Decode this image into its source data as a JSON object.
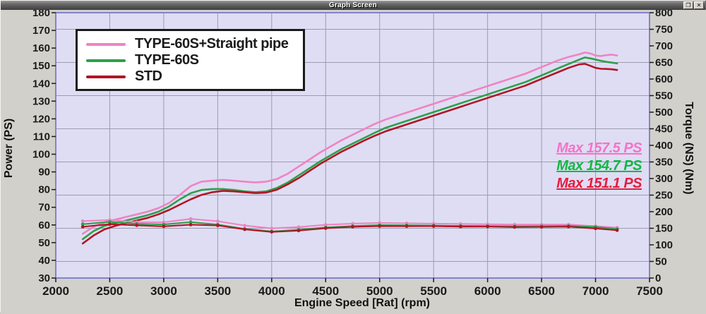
{
  "window": {
    "title": "Graph Screen",
    "restore_icon": "❐",
    "close_icon": "✕"
  },
  "legend": {
    "items": [
      {
        "label": "TYPE-60S+Straight pipe",
        "color": "#ee84c4"
      },
      {
        "label": "TYPE-60S",
        "color": "#2da04a"
      },
      {
        "label": "STD",
        "color": "#b01626"
      }
    ]
  },
  "chart_data": {
    "type": "line",
    "title": "Graph Screen",
    "x_axis": {
      "label": "Engine Speed [Rat] (rpm)",
      "min": 2000,
      "max": 7500,
      "tick_step": 500,
      "ticks": [
        2000,
        2500,
        3000,
        3500,
        4000,
        4500,
        5000,
        5500,
        6000,
        6500,
        7000,
        7500
      ]
    },
    "y_left": {
      "label": "Power (PS)",
      "min": 30,
      "max": 180,
      "tick_step": 10,
      "ticks": [
        180,
        170,
        160,
        150,
        140,
        130,
        120,
        110,
        100,
        90,
        80,
        70,
        60,
        50,
        40,
        30
      ]
    },
    "y_right": {
      "label": "Torque (NS) (Nm)",
      "min": 0,
      "max": 800,
      "tick_step": 50,
      "ticks": [
        800,
        750,
        700,
        650,
        600,
        550,
        500,
        450,
        400,
        350,
        300,
        250,
        200,
        150,
        100,
        50,
        0
      ]
    },
    "grid": {
      "vertical_rpm": [
        2500,
        3000,
        3500,
        4000,
        4500,
        5000,
        5500,
        6000,
        6500,
        7000
      ],
      "horizontal_nm": [
        750,
        650,
        550,
        450,
        350,
        250,
        150,
        50
      ],
      "grid_color": "#9c9cae",
      "plot_background": "#dfddf3",
      "plot_border": "#8383cd"
    },
    "annotations": [
      {
        "text": "Max 157.5 PS",
        "color": "#f473c9"
      },
      {
        "text": "Max 154.7 PS",
        "color": "#10b945"
      },
      {
        "text": "Max 151.1 PS",
        "color": "#e51d3e"
      }
    ],
    "series": [
      {
        "id": "power-type60s-straight-pipe",
        "name": "TYPE-60S+Straight pipe",
        "unit": "PS",
        "axis": "left",
        "color": "#ee84c4",
        "markers": false,
        "max_value": 157.5,
        "points": [
          [
            2250,
            55
          ],
          [
            2350,
            59
          ],
          [
            2450,
            61.5
          ],
          [
            2550,
            63
          ],
          [
            2650,
            64.5
          ],
          [
            2750,
            66
          ],
          [
            2850,
            67.5
          ],
          [
            2950,
            69.5
          ],
          [
            3050,
            72.5
          ],
          [
            3150,
            77
          ],
          [
            3250,
            82
          ],
          [
            3350,
            84.5
          ],
          [
            3450,
            85
          ],
          [
            3550,
            85.5
          ],
          [
            3650,
            85
          ],
          [
            3750,
            84.5
          ],
          [
            3850,
            84
          ],
          [
            3950,
            84.5
          ],
          [
            4050,
            86
          ],
          [
            4150,
            89
          ],
          [
            4250,
            93
          ],
          [
            4350,
            97
          ],
          [
            4450,
            101
          ],
          [
            4550,
            104.5
          ],
          [
            4650,
            108
          ],
          [
            4750,
            111
          ],
          [
            4850,
            114
          ],
          [
            4950,
            117
          ],
          [
            5050,
            119.5
          ],
          [
            5150,
            121.5
          ],
          [
            5250,
            123.5
          ],
          [
            5350,
            125.5
          ],
          [
            5450,
            127.5
          ],
          [
            5550,
            129.5
          ],
          [
            5650,
            131.5
          ],
          [
            5750,
            133.5
          ],
          [
            5850,
            135.5
          ],
          [
            5950,
            137.5
          ],
          [
            6050,
            139.5
          ],
          [
            6150,
            141.5
          ],
          [
            6250,
            143.5
          ],
          [
            6350,
            145.5
          ],
          [
            6450,
            148
          ],
          [
            6550,
            150.5
          ],
          [
            6650,
            153
          ],
          [
            6750,
            155
          ],
          [
            6850,
            156.5
          ],
          [
            6900,
            157.5
          ],
          [
            6950,
            157
          ],
          [
            7000,
            155.8
          ],
          [
            7050,
            155.5
          ],
          [
            7100,
            156
          ],
          [
            7150,
            156.3
          ],
          [
            7200,
            155.8
          ]
        ]
      },
      {
        "id": "power-type60s",
        "name": "TYPE-60S",
        "unit": "PS",
        "axis": "left",
        "color": "#2da04a",
        "markers": false,
        "max_value": 154.7,
        "points": [
          [
            2250,
            52
          ],
          [
            2350,
            56.5
          ],
          [
            2450,
            59.5
          ],
          [
            2550,
            61
          ],
          [
            2650,
            62.5
          ],
          [
            2750,
            64
          ],
          [
            2850,
            65.5
          ],
          [
            2950,
            67.5
          ],
          [
            3050,
            70.5
          ],
          [
            3150,
            74.5
          ],
          [
            3250,
            78
          ],
          [
            3350,
            79.8
          ],
          [
            3450,
            80.3
          ],
          [
            3550,
            80.3
          ],
          [
            3650,
            79.8
          ],
          [
            3750,
            79
          ],
          [
            3850,
            78.5
          ],
          [
            3950,
            79
          ],
          [
            4050,
            81
          ],
          [
            4150,
            84
          ],
          [
            4250,
            88
          ],
          [
            4350,
            92
          ],
          [
            4450,
            96
          ],
          [
            4550,
            99.5
          ],
          [
            4650,
            103
          ],
          [
            4750,
            106
          ],
          [
            4850,
            109
          ],
          [
            4950,
            112
          ],
          [
            5050,
            114.8
          ],
          [
            5150,
            116.8
          ],
          [
            5250,
            118.8
          ],
          [
            5350,
            120.8
          ],
          [
            5450,
            122.8
          ],
          [
            5550,
            124.8
          ],
          [
            5650,
            126.8
          ],
          [
            5750,
            128.8
          ],
          [
            5850,
            130.8
          ],
          [
            5950,
            132.8
          ],
          [
            6050,
            134.8
          ],
          [
            6150,
            136.8
          ],
          [
            6250,
            138.8
          ],
          [
            6350,
            140.8
          ],
          [
            6450,
            143.3
          ],
          [
            6550,
            145.8
          ],
          [
            6650,
            148.5
          ],
          [
            6750,
            151
          ],
          [
            6850,
            153.5
          ],
          [
            6900,
            154.7
          ],
          [
            6950,
            154.2
          ],
          [
            7000,
            153.5
          ],
          [
            7050,
            152.8
          ],
          [
            7100,
            152.2
          ],
          [
            7150,
            151.8
          ],
          [
            7200,
            151.3
          ]
        ]
      },
      {
        "id": "power-std",
        "name": "STD",
        "unit": "PS",
        "axis": "left",
        "color": "#b01626",
        "markers": false,
        "max_value": 151.1,
        "points": [
          [
            2250,
            49.5
          ],
          [
            2350,
            54
          ],
          [
            2450,
            57.5
          ],
          [
            2550,
            59.5
          ],
          [
            2650,
            61
          ],
          [
            2750,
            62.5
          ],
          [
            2850,
            64
          ],
          [
            2950,
            66
          ],
          [
            3050,
            68.5
          ],
          [
            3150,
            71.5
          ],
          [
            3250,
            74.5
          ],
          [
            3350,
            77
          ],
          [
            3450,
            78.5
          ],
          [
            3550,
            79.3
          ],
          [
            3650,
            79
          ],
          [
            3750,
            78.5
          ],
          [
            3850,
            78
          ],
          [
            3950,
            78.3
          ],
          [
            4050,
            80
          ],
          [
            4150,
            83
          ],
          [
            4250,
            86.5
          ],
          [
            4350,
            90.5
          ],
          [
            4450,
            94.5
          ],
          [
            4550,
            98
          ],
          [
            4650,
            101.5
          ],
          [
            4750,
            104.5
          ],
          [
            4850,
            107.5
          ],
          [
            4950,
            110.3
          ],
          [
            5050,
            112.8
          ],
          [
            5150,
            114.8
          ],
          [
            5250,
            116.8
          ],
          [
            5350,
            118.8
          ],
          [
            5450,
            120.8
          ],
          [
            5550,
            122.8
          ],
          [
            5650,
            124.8
          ],
          [
            5750,
            126.8
          ],
          [
            5850,
            128.8
          ],
          [
            5950,
            130.8
          ],
          [
            6050,
            132.8
          ],
          [
            6150,
            134.8
          ],
          [
            6250,
            136.8
          ],
          [
            6350,
            138.8
          ],
          [
            6450,
            141.3
          ],
          [
            6550,
            143.8
          ],
          [
            6650,
            146.3
          ],
          [
            6750,
            148.8
          ],
          [
            6850,
            150.8
          ],
          [
            6900,
            151.1
          ],
          [
            6950,
            150
          ],
          [
            7000,
            148.8
          ],
          [
            7050,
            148.3
          ],
          [
            7100,
            148.2
          ],
          [
            7150,
            148
          ],
          [
            7200,
            147.6
          ]
        ]
      },
      {
        "id": "torque-type60s-straight-pipe",
        "name": "TYPE-60S+Straight pipe torque",
        "unit": "Nm",
        "axis": "right",
        "color": "#ee84c4",
        "markers": true,
        "points": [
          [
            2250,
            171.7
          ],
          [
            2500,
            175.0
          ],
          [
            2750,
            168.6
          ],
          [
            3000,
            168.1
          ],
          [
            3250,
            178.3
          ],
          [
            3500,
            171.2
          ],
          [
            3750,
            158.3
          ],
          [
            4000,
            149.8
          ],
          [
            4250,
            153.7
          ],
          [
            4500,
            160.4
          ],
          [
            4750,
            164.1
          ],
          [
            5000,
            166.2
          ],
          [
            5250,
            165.2
          ],
          [
            5500,
            164.1
          ],
          [
            5750,
            163.1
          ],
          [
            6000,
            162.1
          ],
          [
            6250,
            161.3
          ],
          [
            6500,
            161.3
          ],
          [
            6750,
            161.3
          ],
          [
            7000,
            156.3
          ],
          [
            7200,
            152.0
          ]
        ]
      },
      {
        "id": "torque-type60s",
        "name": "TYPE-60S torque",
        "unit": "Nm",
        "axis": "right",
        "color": "#2da04a",
        "markers": true,
        "points": [
          [
            2250,
            162.3
          ],
          [
            2500,
            169.4
          ],
          [
            2750,
            163.5
          ],
          [
            3000,
            161.5
          ],
          [
            3250,
            168.6
          ],
          [
            3500,
            161.1
          ],
          [
            3750,
            148.0
          ],
          [
            4000,
            140.5
          ],
          [
            4250,
            145.4
          ],
          [
            4500,
            152.6
          ],
          [
            4750,
            156.7
          ],
          [
            5000,
            159.3
          ],
          [
            5250,
            158.9
          ],
          [
            5500,
            158.1
          ],
          [
            5750,
            157.3
          ],
          [
            6000,
            156.6
          ],
          [
            6250,
            156.0
          ],
          [
            6500,
            156.2
          ],
          [
            6750,
            157.1
          ],
          [
            7000,
            154.0
          ],
          [
            7200,
            147.6
          ]
        ]
      },
      {
        "id": "torque-std",
        "name": "STD torque",
        "unit": "Nm",
        "axis": "right",
        "color": "#b01626",
        "markers": true,
        "points": [
          [
            2250,
            154.5
          ],
          [
            2500,
            162.4
          ],
          [
            2750,
            158.9
          ],
          [
            3000,
            155.7
          ],
          [
            3250,
            160.9
          ],
          [
            3500,
            158.5
          ],
          [
            3750,
            146.6
          ],
          [
            4000,
            139.0
          ],
          [
            4250,
            142.9
          ],
          [
            4500,
            150.3
          ],
          [
            4750,
            154.5
          ],
          [
            5000,
            156.7
          ],
          [
            5250,
            156.2
          ],
          [
            5500,
            156.4
          ],
          [
            5750,
            154.9
          ],
          [
            6000,
            155.1
          ],
          [
            6250,
            153.7
          ],
          [
            6500,
            154.1
          ],
          [
            6750,
            154.8
          ],
          [
            7000,
            149.3
          ],
          [
            7200,
            144.0
          ]
        ]
      }
    ]
  }
}
